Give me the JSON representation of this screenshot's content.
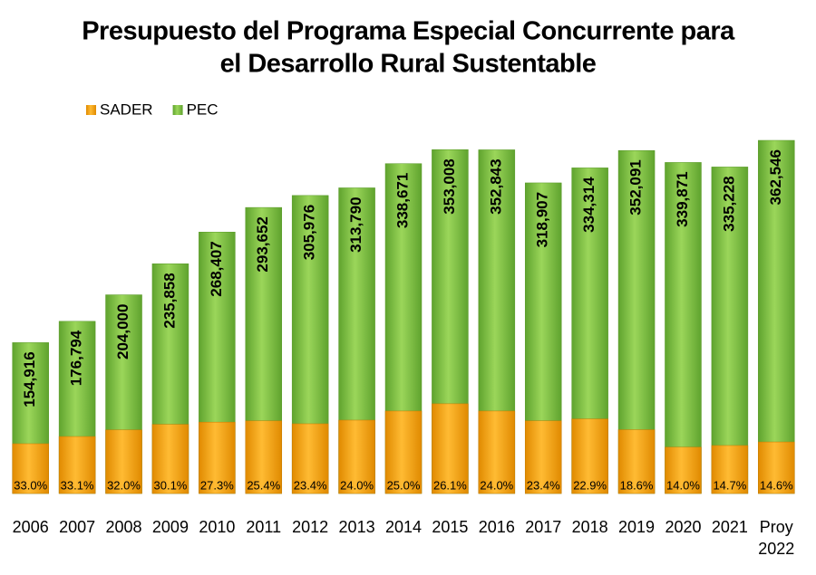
{
  "chart_data": {
    "type": "bar",
    "stacked": true,
    "title": "Presupuesto del Programa Especial Concurrente para",
    "subtitle": "el Desarrollo Rural Sustentable",
    "categories": [
      "2006",
      "2007",
      "2008",
      "2009",
      "2010",
      "2011",
      "2012",
      "2013",
      "2014",
      "2015",
      "2016",
      "2017",
      "2018",
      "2019",
      "2020",
      "2021",
      "Proy 2022"
    ],
    "series": [
      {
        "name": "SADER",
        "color": "#f5a000",
        "values": [
          33.0,
          33.1,
          32.0,
          30.1,
          27.3,
          25.4,
          23.4,
          24.0,
          25.0,
          26.1,
          24.0,
          23.4,
          22.9,
          18.6,
          14.0,
          14.7,
          14.6
        ],
        "value_labels": [
          "33.0%",
          "33.1%",
          "32.0%",
          "30.1%",
          "27.3%",
          "25.4%",
          "23.4%",
          "24.0%",
          "25.0%",
          "26.1%",
          "24.0%",
          "23.4%",
          "22.9%",
          "18.6%",
          "14.0%",
          "14.7%",
          "14.6%"
        ]
      },
      {
        "name": "PEC",
        "color": "#7cc142",
        "values": [
          154916,
          176794,
          204000,
          235858,
          268407,
          293652,
          305976,
          313790,
          338671,
          353008,
          352843,
          318907,
          334314,
          352091,
          339871,
          335228,
          362546
        ],
        "value_labels": [
          "154,916",
          "176,794",
          "204,000",
          "235,858",
          "268,407",
          "293,652",
          "305,976",
          "313,790",
          "338,671",
          "353,008",
          "352,843",
          "318,907",
          "334,314",
          "352,091",
          "339,871",
          "335,228",
          "362,546"
        ]
      }
    ],
    "legend": "top-left"
  }
}
